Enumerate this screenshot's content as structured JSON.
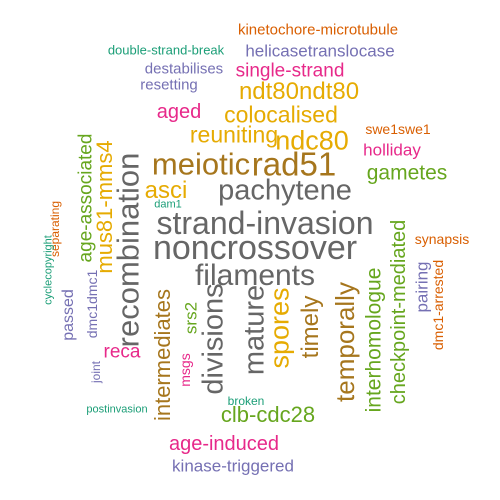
{
  "palette": {
    "teal": "#1b9e77",
    "orange": "#d95f02",
    "purple": "#7570b3",
    "magenta": "#e7298a",
    "green": "#66a61e",
    "gold": "#e6ab02",
    "brown": "#a6761d",
    "gray": "#666666"
  },
  "words": [
    {
      "text": "kinetochore-microtubule",
      "color": "#d95f02",
      "vertical": false
    },
    {
      "text": "double-strand-break",
      "color": "#1b9e77",
      "vertical": false
    },
    {
      "text": "helicasetranslocase",
      "color": "#7570b3",
      "vertical": false
    },
    {
      "text": "destabilises",
      "color": "#7570b3",
      "vertical": false
    },
    {
      "text": "single-strand",
      "color": "#e7298a",
      "vertical": false
    },
    {
      "text": "resetting",
      "color": "#7570b3",
      "vertical": false
    },
    {
      "text": "ndt80ndt80",
      "color": "#e6ab02",
      "vertical": false
    },
    {
      "text": "aged",
      "color": "#e7298a",
      "vertical": false
    },
    {
      "text": "colocalised",
      "color": "#e6ab02",
      "vertical": false
    },
    {
      "text": "swe1swe1",
      "color": "#d95f02",
      "vertical": false
    },
    {
      "text": "reuniting",
      "color": "#e6ab02",
      "vertical": false
    },
    {
      "text": "ndc80",
      "color": "#e6ab02",
      "vertical": false
    },
    {
      "text": "holliday",
      "color": "#e7298a",
      "vertical": false
    },
    {
      "text": "meiotic",
      "color": "#a6761d",
      "vertical": false
    },
    {
      "text": "rad51",
      "color": "#a6761d",
      "vertical": false
    },
    {
      "text": "gametes",
      "color": "#66a61e",
      "vertical": false
    },
    {
      "text": "asci",
      "color": "#e6ab02",
      "vertical": false
    },
    {
      "text": "pachytene",
      "color": "#666666",
      "vertical": false
    },
    {
      "text": "dam1",
      "color": "#1b9e77",
      "vertical": false
    },
    {
      "text": "strand-invasion",
      "color": "#666666",
      "vertical": false
    },
    {
      "text": "synapsis",
      "color": "#d95f02",
      "vertical": false
    },
    {
      "text": "noncrossover",
      "color": "#666666",
      "vertical": false
    },
    {
      "text": "filaments",
      "color": "#666666",
      "vertical": false
    },
    {
      "text": "recombination",
      "color": "#666666",
      "vertical": true
    },
    {
      "text": "mus81-mms4",
      "color": "#e6ab02",
      "vertical": true
    },
    {
      "text": "age-associated",
      "color": "#66a61e",
      "vertical": true
    },
    {
      "text": "separating",
      "color": "#d95f02",
      "vertical": true
    },
    {
      "text": "cyclecopyright",
      "color": "#1b9e77",
      "vertical": true
    },
    {
      "text": "passed",
      "color": "#7570b3",
      "vertical": true
    },
    {
      "text": "dmc1dmc1",
      "color": "#7570b3",
      "vertical": true
    },
    {
      "text": "intermediates",
      "color": "#a6761d",
      "vertical": true
    },
    {
      "text": "srs2",
      "color": "#66a61e",
      "vertical": true
    },
    {
      "text": "divisions",
      "color": "#666666",
      "vertical": true
    },
    {
      "text": "mature",
      "color": "#666666",
      "vertical": true
    },
    {
      "text": "spores",
      "color": "#e6ab02",
      "vertical": true
    },
    {
      "text": "timely",
      "color": "#a6761d",
      "vertical": true
    },
    {
      "text": "temporally",
      "color": "#a6761d",
      "vertical": true
    },
    {
      "text": "interhomologue",
      "color": "#66a61e",
      "vertical": true
    },
    {
      "text": "checkpoint-mediated",
      "color": "#66a61e",
      "vertical": true
    },
    {
      "text": "pairing",
      "color": "#7570b3",
      "vertical": true
    },
    {
      "text": "dmc1-arrested",
      "color": "#d95f02",
      "vertical": true
    },
    {
      "text": "msgs",
      "color": "#e7298a",
      "vertical": true
    },
    {
      "text": "reca",
      "color": "#e7298a",
      "vertical": false
    },
    {
      "text": "joint",
      "color": "#7570b3",
      "vertical": true
    },
    {
      "text": "broken",
      "color": "#1b9e77",
      "vertical": false
    },
    {
      "text": "postinvasion",
      "color": "#1b9e77",
      "vertical": false
    },
    {
      "text": "clb-cdc28",
      "color": "#66a61e",
      "vertical": false
    },
    {
      "text": "age-induced",
      "color": "#e7298a",
      "vertical": false
    },
    {
      "text": "kinase-triggered",
      "color": "#7570b3",
      "vertical": false
    }
  ]
}
